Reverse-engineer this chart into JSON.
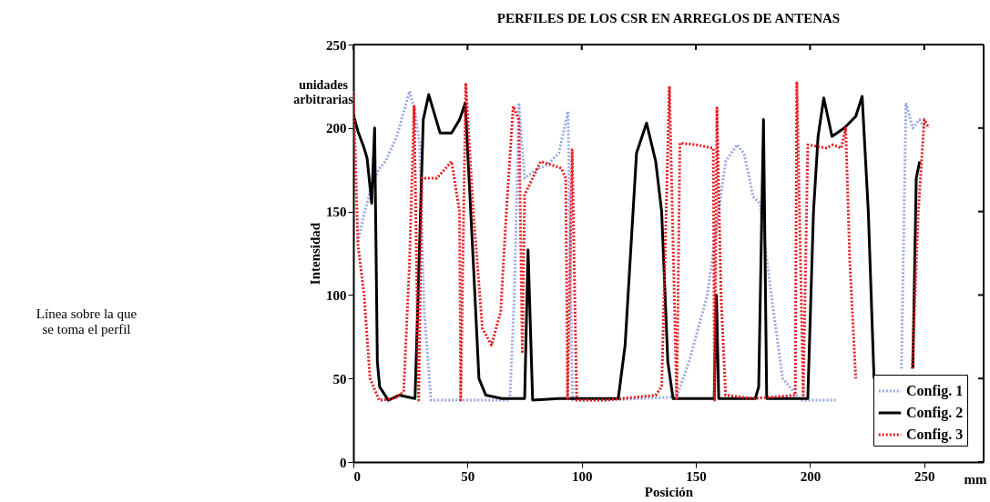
{
  "chart_data": {
    "type": "line",
    "title": "PERFILES DE LOS CSR EN ARREGLOS DE ANTENAS",
    "xlabel": "Posición",
    "ylabel": "Intensidad",
    "annotations": [
      "unidades\narbitrarias",
      "mm",
      "Línea sobre la que\nse toma el perfil"
    ],
    "xlim": [
      0,
      276
    ],
    "xticks": [
      0,
      50,
      100,
      150,
      200,
      250
    ],
    "ylim": [
      0,
      250
    ],
    "yticks": [
      0,
      50,
      100,
      150,
      200,
      250
    ],
    "grid": false,
    "legend": "bottom right",
    "marker": "none",
    "series": [
      {
        "name": "Config. 1",
        "color": "#99a6e6",
        "line_style": "dotted",
        "x": [
          2,
          5,
          8,
          11,
          14,
          19,
          24.6,
          27,
          29,
          31,
          34,
          50,
          68.5,
          70.5,
          72.5,
          75,
          80,
          85,
          90,
          94,
          96,
          110,
          141.6,
          147,
          155,
          160,
          163,
          168,
          171,
          173,
          175,
          178,
          183,
          188,
          196,
          205,
          212,
          213,
          240,
          242,
          245,
          248,
          250
        ],
        "values": [
          132,
          150,
          165,
          175,
          180,
          195,
          222,
          210,
          190,
          90,
          37,
          37,
          37,
          100,
          215,
          170,
          175,
          178,
          185,
          210,
          37,
          37,
          39,
          60,
          100,
          150,
          180,
          190,
          185,
          173,
          159,
          155,
          100,
          50,
          37,
          37,
          37,
          null,
          56,
          215,
          200,
          205,
          200
        ]
      },
      {
        "name": "Config. 2",
        "color": "#000000",
        "line_style": "solid",
        "x": [
          0,
          2,
          4.7,
          6,
          8,
          9.3,
          10.5,
          11.5,
          15.3,
          20,
          27,
          30.6,
          33,
          38,
          43,
          46.5,
          49,
          52.5,
          55,
          58,
          65,
          75,
          76.5,
          78.5,
          90,
          116,
          119,
          124,
          128.4,
          132.4,
          135,
          137.7,
          140,
          150,
          158,
          159,
          160,
          170,
          176,
          177.5,
          179.6,
          181,
          190,
          199,
          201.5,
          203.5,
          206,
          209.6,
          215,
          220,
          222.8,
          225.5,
          228,
          229,
          245,
          246.5,
          248
        ],
        "values": [
          208,
          198,
          188,
          182,
          155,
          200,
          60,
          45,
          37,
          40,
          38,
          205,
          220,
          197,
          197,
          205,
          215,
          120,
          50,
          40,
          38,
          38,
          127,
          37,
          38,
          38,
          70,
          185,
          203,
          180,
          150,
          60,
          38,
          38,
          38,
          100,
          38,
          38,
          38,
          45,
          205,
          38,
          38,
          38,
          150,
          195,
          218,
          195,
          200,
          207,
          219,
          150,
          50,
          null,
          56,
          170,
          180
        ]
      },
      {
        "name": "Config. 3",
        "color": "#e8161b",
        "line_style": "dotted",
        "x": [
          0,
          2,
          4.7,
          7.3,
          11.3,
          18,
          22,
          24.6,
          26.6,
          28.6,
          30,
          36.6,
          43,
          46.5,
          47,
          49.2,
          52.5,
          56.5,
          60.5,
          64.5,
          67,
          70,
          72.5,
          74,
          75,
          82,
          91,
          93,
          93.8,
          95.8,
          97.8,
          110,
          132.4,
          135,
          138.4,
          141.6,
          143,
          150,
          157.6,
          158.2,
          159.2,
          161,
          163,
          175,
          193.5,
          194.2,
          197,
          199,
          207,
          210,
          213.7,
          215.6,
          217.4,
          220,
          221,
          244.7,
          247.4,
          250,
          252
        ],
        "values": [
          222,
          130,
          100,
          50,
          37,
          38,
          42,
          120,
          213,
          37,
          170,
          170,
          180,
          150,
          37,
          227,
          150,
          80,
          70,
          90,
          150,
          213,
          205,
          65,
          160,
          180,
          176,
          170,
          37,
          187,
          37,
          37,
          40,
          45,
          225,
          37,
          191,
          190,
          188,
          37,
          212,
          100,
          40,
          38,
          40,
          227,
          40,
          190,
          188,
          190,
          188,
          200,
          120,
          50,
          null,
          56,
          150,
          205,
          200
        ]
      }
    ]
  }
}
